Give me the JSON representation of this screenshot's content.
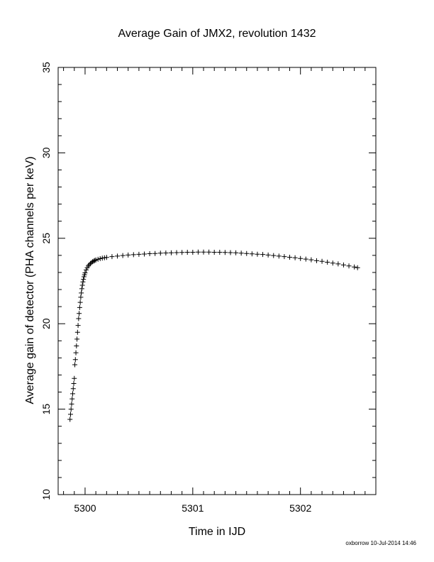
{
  "chart_data": {
    "type": "scatter",
    "title": "Average Gain of JMX2, revolution 1432",
    "xlabel": "Time in IJD",
    "ylabel": "Average gain of detector (PHA channels per keV)",
    "xlim": [
      5299.75,
      5302.7
    ],
    "ylim": [
      10,
      35
    ],
    "x_ticks": [
      5300,
      5301,
      5302
    ],
    "y_ticks": [
      10,
      15,
      20,
      25,
      30,
      35
    ],
    "marker": "plus",
    "color": "#000000",
    "grid": false,
    "points": [
      [
        5299.86,
        14.4
      ],
      [
        5299.865,
        14.7
      ],
      [
        5299.87,
        15.0
      ],
      [
        5299.875,
        15.3
      ],
      [
        5299.88,
        15.6
      ],
      [
        5299.885,
        15.9
      ],
      [
        5299.89,
        16.2
      ],
      [
        5299.895,
        16.5
      ],
      [
        5299.9,
        16.8
      ],
      [
        5299.905,
        17.6
      ],
      [
        5299.91,
        17.9
      ],
      [
        5299.915,
        18.3
      ],
      [
        5299.92,
        18.7
      ],
      [
        5299.925,
        19.1
      ],
      [
        5299.93,
        19.5
      ],
      [
        5299.935,
        19.9
      ],
      [
        5299.94,
        20.3
      ],
      [
        5299.945,
        20.6
      ],
      [
        5299.95,
        20.95
      ],
      [
        5299.955,
        21.25
      ],
      [
        5299.96,
        21.55
      ],
      [
        5299.965,
        21.8
      ],
      [
        5299.97,
        22.05
      ],
      [
        5299.975,
        22.25
      ],
      [
        5299.98,
        22.45
      ],
      [
        5299.985,
        22.6
      ],
      [
        5299.99,
        22.75
      ],
      [
        5299.995,
        22.87
      ],
      [
        5300.0,
        22.98
      ],
      [
        5300.01,
        23.15
      ],
      [
        5300.02,
        23.28
      ],
      [
        5300.03,
        23.38
      ],
      [
        5300.04,
        23.46
      ],
      [
        5300.05,
        23.53
      ],
      [
        5300.06,
        23.58
      ],
      [
        5300.07,
        23.63
      ],
      [
        5300.08,
        23.67
      ],
      [
        5300.09,
        23.7
      ],
      [
        5300.1,
        23.73
      ],
      [
        5300.12,
        23.77
      ],
      [
        5300.14,
        23.81
      ],
      [
        5300.16,
        23.84
      ],
      [
        5300.18,
        23.86
      ],
      [
        5300.2,
        23.88
      ],
      [
        5300.25,
        23.93
      ],
      [
        5300.3,
        23.96
      ],
      [
        5300.35,
        23.99
      ],
      [
        5300.4,
        24.02
      ],
      [
        5300.45,
        24.04
      ],
      [
        5300.5,
        24.06
      ],
      [
        5300.55,
        24.08
      ],
      [
        5300.6,
        24.1
      ],
      [
        5300.65,
        24.11
      ],
      [
        5300.7,
        24.13
      ],
      [
        5300.75,
        24.14
      ],
      [
        5300.8,
        24.15
      ],
      [
        5300.85,
        24.16
      ],
      [
        5300.9,
        24.17
      ],
      [
        5300.95,
        24.18
      ],
      [
        5301.0,
        24.18
      ],
      [
        5301.05,
        24.19
      ],
      [
        5301.1,
        24.19
      ],
      [
        5301.15,
        24.19
      ],
      [
        5301.2,
        24.18
      ],
      [
        5301.25,
        24.18
      ],
      [
        5301.3,
        24.17
      ],
      [
        5301.35,
        24.16
      ],
      [
        5301.4,
        24.15
      ],
      [
        5301.45,
        24.13
      ],
      [
        5301.5,
        24.11
      ],
      [
        5301.55,
        24.09
      ],
      [
        5301.6,
        24.07
      ],
      [
        5301.65,
        24.05
      ],
      [
        5301.7,
        24.02
      ],
      [
        5301.75,
        23.99
      ],
      [
        5301.8,
        23.96
      ],
      [
        5301.85,
        23.93
      ],
      [
        5301.9,
        23.89
      ],
      [
        5301.95,
        23.86
      ],
      [
        5302.0,
        23.82
      ],
      [
        5302.05,
        23.78
      ],
      [
        5302.1,
        23.74
      ],
      [
        5302.15,
        23.69
      ],
      [
        5302.2,
        23.65
      ],
      [
        5302.25,
        23.6
      ],
      [
        5302.3,
        23.55
      ],
      [
        5302.35,
        23.5
      ],
      [
        5302.4,
        23.44
      ],
      [
        5302.45,
        23.38
      ],
      [
        5302.5,
        23.32
      ],
      [
        5302.53,
        23.28
      ]
    ]
  },
  "footer": {
    "credit": "oxborrow 10-Jul-2014 14:46"
  }
}
